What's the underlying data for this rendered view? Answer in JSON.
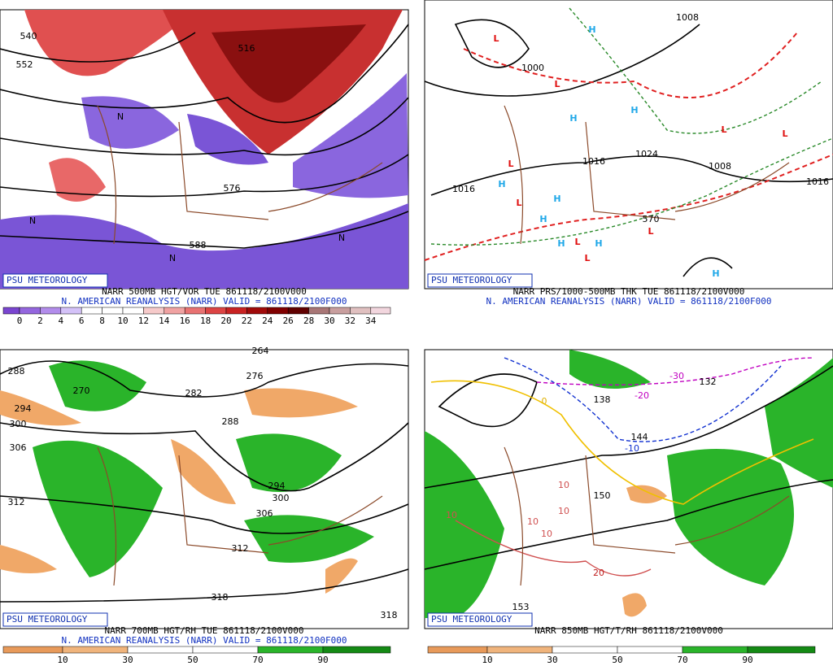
{
  "panels": [
    {
      "watermark": "PSU METEOROLOGY",
      "title": "NARR 500MB HGT/VOR TUE 861118/2100V000",
      "subtitle": "N. AMERICAN REANALYSIS (NARR) VALID = 861118/2100F000",
      "colorbar": {
        "labels": [
          "0",
          "2",
          "4",
          "6",
          "8",
          "10",
          "12",
          "14",
          "16",
          "18",
          "20",
          "22",
          "24",
          "26",
          "28",
          "30",
          "32",
          "34"
        ],
        "colors": [
          "#7a45d0",
          "#9466de",
          "#b28ceb",
          "#d4c2f8",
          "#ffffff",
          "#ffffff",
          "#ffffff",
          "#f6caca",
          "#f0a2a2",
          "#e87272",
          "#dc4444",
          "#c82222",
          "#a00a0a",
          "#800000",
          "#600000",
          "#a87676",
          "#c89e9e",
          "#e0c0c0",
          "#f2d6de"
        ]
      },
      "map_labels": [
        {
          "text": "540",
          "color": "#000000"
        },
        {
          "text": "552",
          "color": "#000000"
        },
        {
          "text": "516",
          "color": "#000000"
        },
        {
          "text": "576",
          "color": "#000000"
        },
        {
          "text": "588",
          "color": "#000000"
        },
        {
          "text": "N",
          "color": "#000000"
        },
        {
          "text": "N",
          "color": "#000000"
        },
        {
          "text": "N",
          "color": "#000000"
        },
        {
          "text": "N",
          "color": "#000000"
        }
      ]
    },
    {
      "watermark": "PSU METEOROLOGY",
      "title": "NARR PRS/1000-500MB THK TUE 861118/2100V000",
      "subtitle": "N. AMERICAN REANALYSIS (NARR) VALID = 861118/2100F000",
      "map_labels": [
        {
          "text": "1008",
          "color": "#000000"
        },
        {
          "text": "1000",
          "color": "#000000"
        },
        {
          "text": "1016",
          "color": "#000000"
        },
        {
          "text": "1016",
          "color": "#000000"
        },
        {
          "text": "1024",
          "color": "#000000"
        },
        {
          "text": "1008",
          "color": "#000000"
        },
        {
          "text": "1016",
          "color": "#000000"
        },
        {
          "text": "570",
          "color": "#000000"
        },
        {
          "text": "L",
          "color": "#e01010"
        },
        {
          "text": "L",
          "color": "#e01010"
        },
        {
          "text": "L",
          "color": "#e01010"
        },
        {
          "text": "L",
          "color": "#e01010"
        },
        {
          "text": "L",
          "color": "#e01010"
        },
        {
          "text": "L",
          "color": "#e01010"
        },
        {
          "text": "L",
          "color": "#e01010"
        },
        {
          "text": "L",
          "color": "#e01010"
        },
        {
          "text": "L",
          "color": "#e01010"
        },
        {
          "text": "H",
          "color": "#20a8e8"
        },
        {
          "text": "H",
          "color": "#20a8e8"
        },
        {
          "text": "H",
          "color": "#20a8e8"
        },
        {
          "text": "H",
          "color": "#20a8e8"
        },
        {
          "text": "H",
          "color": "#20a8e8"
        },
        {
          "text": "H",
          "color": "#20a8e8"
        },
        {
          "text": "H",
          "color": "#20a8e8"
        },
        {
          "text": "H",
          "color": "#20a8e8"
        },
        {
          "text": "H",
          "color": "#20a8e8"
        }
      ]
    },
    {
      "watermark": "PSU METEOROLOGY",
      "title": "NARR 700MB HGT/RH TUE 861118/2100V000",
      "subtitle": "N. AMERICAN REANALYSIS (NARR) VALID = 861118/2100F000",
      "colorbar": {
        "labels": [
          "10",
          "30",
          "50",
          "70",
          "90"
        ],
        "colors": [
          "#e89a5a",
          "#f0b47c",
          "#ffffff",
          "#ffffff",
          "#2ab42a",
          "#148a14"
        ]
      },
      "map_labels": [
        {
          "text": "288",
          "color": "#000000"
        },
        {
          "text": "294",
          "color": "#000000"
        },
        {
          "text": "300",
          "color": "#000000"
        },
        {
          "text": "306",
          "color": "#000000"
        },
        {
          "text": "312",
          "color": "#000000"
        },
        {
          "text": "270",
          "color": "#000000"
        },
        {
          "text": "264",
          "color": "#000000"
        },
        {
          "text": "276",
          "color": "#000000"
        },
        {
          "text": "282",
          "color": "#000000"
        },
        {
          "text": "288",
          "color": "#000000"
        },
        {
          "text": "294",
          "color": "#000000"
        },
        {
          "text": "300",
          "color": "#000000"
        },
        {
          "text": "306",
          "color": "#000000"
        },
        {
          "text": "312",
          "color": "#000000"
        },
        {
          "text": "318",
          "color": "#000000"
        },
        {
          "text": "318",
          "color": "#000000"
        }
      ]
    },
    {
      "watermark": "PSU METEOROLOGY",
      "title": "NARR 850MB HGT/T/RH 861118/2100V000",
      "colorbar": {
        "labels": [
          "10",
          "30",
          "50",
          "70",
          "90"
        ],
        "colors": [
          "#e89a5a",
          "#f0b47c",
          "#ffffff",
          "#ffffff",
          "#2ab42a",
          "#148a14"
        ]
      },
      "map_labels": [
        {
          "text": "-30",
          "color": "#c000c0"
        },
        {
          "text": "-20",
          "color": "#c000c0"
        },
        {
          "text": "-10",
          "color": "#1030d0"
        },
        {
          "text": "0",
          "color": "#e0b000"
        },
        {
          "text": "10",
          "color": "#d05050"
        },
        {
          "text": "10",
          "color": "#d05050"
        },
        {
          "text": "10",
          "color": "#d05050"
        },
        {
          "text": "10",
          "color": "#d05050"
        },
        {
          "text": "10",
          "color": "#d05050"
        },
        {
          "text": "20",
          "color": "#c02020"
        },
        {
          "text": "132",
          "color": "#000000"
        },
        {
          "text": "138",
          "color": "#000000"
        },
        {
          "text": "144",
          "color": "#000000"
        },
        {
          "text": "150",
          "color": "#000000"
        },
        {
          "text": "153",
          "color": "#000000"
        }
      ]
    }
  ]
}
